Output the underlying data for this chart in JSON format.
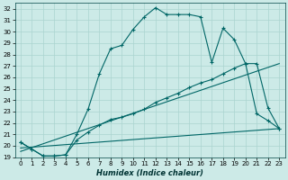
{
  "xlabel": "Humidex (Indice chaleur)",
  "bg_color": "#cceae7",
  "grid_color": "#aad4cf",
  "line_color": "#006666",
  "xlim": [
    -0.5,
    23.5
  ],
  "ylim": [
    19,
    32.5
  ],
  "xticks": [
    0,
    1,
    2,
    3,
    4,
    5,
    6,
    7,
    8,
    9,
    10,
    11,
    12,
    13,
    14,
    15,
    16,
    17,
    18,
    19,
    20,
    21,
    22,
    23
  ],
  "yticks": [
    19,
    20,
    21,
    22,
    23,
    24,
    25,
    26,
    27,
    28,
    29,
    30,
    31,
    32
  ],
  "curve1_x": [
    0,
    1,
    2,
    3,
    4,
    5,
    6,
    7,
    8,
    9,
    10,
    11,
    12,
    13,
    14,
    15,
    16,
    17,
    18,
    19,
    20,
    21,
    22,
    23
  ],
  "curve1_y": [
    20.3,
    19.7,
    19.1,
    19.1,
    19.2,
    21.0,
    23.2,
    26.3,
    28.5,
    28.8,
    30.2,
    31.3,
    32.1,
    31.5,
    31.5,
    31.5,
    31.3,
    27.3,
    30.3,
    29.3,
    27.2,
    27.2,
    23.3,
    21.5
  ],
  "curve2_x": [
    0,
    1,
    2,
    3,
    4,
    5,
    6,
    7,
    8,
    9,
    10,
    11,
    12,
    13,
    14,
    15,
    16,
    17,
    18,
    19,
    20,
    21,
    22,
    23
  ],
  "curve2_y": [
    20.3,
    19.7,
    19.1,
    19.1,
    19.2,
    20.5,
    21.2,
    21.8,
    22.3,
    22.5,
    22.8,
    23.2,
    23.8,
    24.2,
    24.6,
    25.1,
    25.5,
    25.8,
    26.3,
    26.8,
    27.2,
    22.8,
    22.2,
    21.5
  ],
  "line3_x": [
    0,
    23
  ],
  "line3_y": [
    19.5,
    27.2
  ],
  "line4_x": [
    0,
    23
  ],
  "line4_y": [
    19.8,
    21.5
  ]
}
